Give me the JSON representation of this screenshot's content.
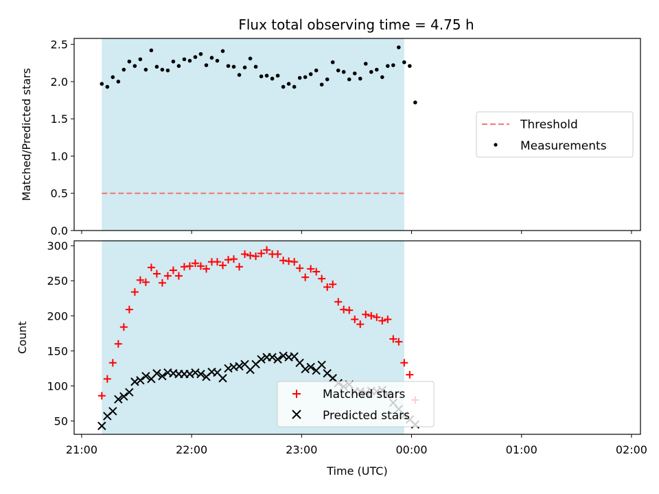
{
  "title": "Flux total observing time = 4.75 h",
  "colors": {
    "shade": "#add8e6",
    "threshold": "#f08080",
    "measurement": "#000000",
    "matched": "#ff0000",
    "predicted": "#000000"
  },
  "chart_data": [
    {
      "type": "scatter",
      "ylabel": "Matched/Predicted stars",
      "xlim": [
        "21:00",
        "02:00"
      ],
      "ylim": [
        0,
        2.5
      ],
      "yticks": [
        "0.0",
        "0.5",
        "1.0",
        "1.5",
        "2.0",
        "2.5"
      ],
      "shaded_x_range": [
        "21:11",
        "23:56"
      ],
      "legend_position": "center-right",
      "threshold": {
        "name": "Threshold",
        "value": 0.5,
        "style": "dashed"
      },
      "series": [
        {
          "name": "Measurements",
          "points": [
            [
              "21:11",
              1.97
            ],
            [
              "21:14",
              1.93
            ],
            [
              "21:17",
              2.06
            ],
            [
              "21:20",
              2.0
            ],
            [
              "21:23",
              2.16
            ],
            [
              "21:26",
              2.27
            ],
            [
              "21:29",
              2.21
            ],
            [
              "21:32",
              2.3
            ],
            [
              "21:35",
              2.16
            ],
            [
              "21:38",
              2.42
            ],
            [
              "21:41",
              2.2
            ],
            [
              "21:44",
              2.16
            ],
            [
              "21:47",
              2.15
            ],
            [
              "21:50",
              2.27
            ],
            [
              "21:53",
              2.21
            ],
            [
              "21:56",
              2.3
            ],
            [
              "21:59",
              2.28
            ],
            [
              "22:02",
              2.33
            ],
            [
              "22:05",
              2.37
            ],
            [
              "22:08",
              2.22
            ],
            [
              "22:11",
              2.32
            ],
            [
              "22:14",
              2.28
            ],
            [
              "22:17",
              2.41
            ],
            [
              "22:20",
              2.21
            ],
            [
              "22:23",
              2.2
            ],
            [
              "22:26",
              2.09
            ],
            [
              "22:29",
              2.19
            ],
            [
              "22:32",
              2.31
            ],
            [
              "22:35",
              2.2
            ],
            [
              "22:38",
              2.07
            ],
            [
              "22:41",
              2.08
            ],
            [
              "22:44",
              2.04
            ],
            [
              "22:47",
              2.08
            ],
            [
              "22:50",
              1.93
            ],
            [
              "22:53",
              1.97
            ],
            [
              "22:56",
              1.93
            ],
            [
              "22:59",
              2.05
            ],
            [
              "23:02",
              2.06
            ],
            [
              "23:05",
              2.1
            ],
            [
              "23:08",
              2.15
            ],
            [
              "23:11",
              1.96
            ],
            [
              "23:14",
              2.03
            ],
            [
              "23:17",
              2.26
            ],
            [
              "23:20",
              2.15
            ],
            [
              "23:23",
              2.13
            ],
            [
              "23:26",
              2.03
            ],
            [
              "23:29",
              2.11
            ],
            [
              "23:32",
              2.04
            ],
            [
              "23:35",
              2.24
            ],
            [
              "23:38",
              2.13
            ],
            [
              "23:41",
              2.16
            ],
            [
              "23:44",
              2.06
            ],
            [
              "23:47",
              2.21
            ],
            [
              "23:50",
              2.22
            ],
            [
              "23:53",
              2.46
            ],
            [
              "23:56",
              2.26
            ],
            [
              "23:59",
              2.21
            ],
            [
              "00:02",
              1.72
            ]
          ]
        }
      ]
    },
    {
      "type": "scatter",
      "xlabel": "Time (UTC)",
      "ylabel": "Count",
      "xticks": [
        "21:00",
        "22:00",
        "23:00",
        "00:00",
        "01:00",
        "02:00"
      ],
      "xlim": [
        "21:00",
        "02:00"
      ],
      "ylim": [
        30,
        305
      ],
      "yticks": [
        "50",
        "100",
        "150",
        "200",
        "250",
        "300"
      ],
      "shaded_x_range": [
        "21:11",
        "23:56"
      ],
      "legend_position": "lower-center",
      "series": [
        {
          "name": "Matched stars",
          "marker": "plus",
          "points": [
            [
              "21:11",
              86
            ],
            [
              "21:14",
              110
            ],
            [
              "21:17",
              133
            ],
            [
              "21:20",
              160
            ],
            [
              "21:23",
              184
            ],
            [
              "21:26",
              209
            ],
            [
              "21:29",
              234
            ],
            [
              "21:32",
              251
            ],
            [
              "21:35",
              248
            ],
            [
              "21:38",
              269
            ],
            [
              "21:41",
              260
            ],
            [
              "21:44",
              247
            ],
            [
              "21:47",
              257
            ],
            [
              "21:50",
              265
            ],
            [
              "21:53",
              257
            ],
            [
              "21:56",
              270
            ],
            [
              "21:59",
              271
            ],
            [
              "22:02",
              275
            ],
            [
              "22:05",
              271
            ],
            [
              "22:08",
              267
            ],
            [
              "22:11",
              277
            ],
            [
              "22:14",
              277
            ],
            [
              "22:17",
              272
            ],
            [
              "22:20",
              280
            ],
            [
              "22:23",
              281
            ],
            [
              "22:26",
              270
            ],
            [
              "22:29",
              288
            ],
            [
              "22:32",
              286
            ],
            [
              "22:35",
              285
            ],
            [
              "22:38",
              289
            ],
            [
              "22:41",
              294
            ],
            [
              "22:44",
              288
            ],
            [
              "22:47",
              288
            ],
            [
              "22:50",
              279
            ],
            [
              "22:53",
              278
            ],
            [
              "22:56",
              277
            ],
            [
              "22:59",
              268
            ],
            [
              "23:02",
              255
            ],
            [
              "23:05",
              267
            ],
            [
              "23:08",
              263
            ],
            [
              "23:11",
              253
            ],
            [
              "23:14",
              241
            ],
            [
              "23:17",
              245
            ],
            [
              "23:20",
              220
            ],
            [
              "23:23",
              209
            ],
            [
              "23:26",
              208
            ],
            [
              "23:29",
              195
            ],
            [
              "23:32",
              188
            ],
            [
              "23:35",
              202
            ],
            [
              "23:38",
              200
            ],
            [
              "23:41",
              198
            ],
            [
              "23:44",
              193
            ],
            [
              "23:47",
              195
            ],
            [
              "23:50",
              167
            ],
            [
              "23:53",
              163
            ],
            [
              "23:56",
              133
            ],
            [
              "23:59",
              116
            ],
            [
              "00:02",
              80
            ]
          ]
        },
        {
          "name": "Predicted stars",
          "marker": "x",
          "points": [
            [
              "21:11",
              43
            ],
            [
              "21:14",
              57
            ],
            [
              "21:17",
              64
            ],
            [
              "21:20",
              81
            ],
            [
              "21:23",
              85
            ],
            [
              "21:26",
              91
            ],
            [
              "21:29",
              106
            ],
            [
              "21:32",
              108
            ],
            [
              "21:35",
              114
            ],
            [
              "21:38",
              110
            ],
            [
              "21:41",
              118
            ],
            [
              "21:44",
              114
            ],
            [
              "21:47",
              119
            ],
            [
              "21:50",
              118
            ],
            [
              "21:53",
              117
            ],
            [
              "21:56",
              117
            ],
            [
              "21:59",
              117
            ],
            [
              "22:02",
              119
            ],
            [
              "22:05",
              117
            ],
            [
              "22:08",
              113
            ],
            [
              "22:11",
              120
            ],
            [
              "22:14",
              119
            ],
            [
              "22:17",
              111
            ],
            [
              "22:20",
              125
            ],
            [
              "22:23",
              127
            ],
            [
              "22:26",
              128
            ],
            [
              "22:29",
              131
            ],
            [
              "22:32",
              123
            ],
            [
              "22:35",
              131
            ],
            [
              "22:38",
              138
            ],
            [
              "22:41",
              141
            ],
            [
              "22:44",
              141
            ],
            [
              "22:47",
              138
            ],
            [
              "22:50",
              143
            ],
            [
              "22:53",
              141
            ],
            [
              "22:56",
              142
            ],
            [
              "22:59",
              133
            ],
            [
              "23:02",
              124
            ],
            [
              "23:05",
              127
            ],
            [
              "23:08",
              122
            ],
            [
              "23:11",
              130
            ],
            [
              "23:14",
              118
            ],
            [
              "23:17",
              111
            ],
            [
              "23:20",
              104
            ],
            [
              "23:23",
              99
            ],
            [
              "23:26",
              102
            ],
            [
              "23:29",
              92
            ],
            [
              "23:32",
              92
            ],
            [
              "23:35",
              90
            ],
            [
              "23:38",
              93
            ],
            [
              "23:41",
              92
            ],
            [
              "23:44",
              94
            ],
            [
              "23:47",
              88
            ],
            [
              "23:50",
              76
            ],
            [
              "23:53",
              67
            ],
            [
              "23:56",
              58
            ],
            [
              "23:59",
              52
            ],
            [
              "00:02",
              45
            ]
          ]
        }
      ]
    }
  ]
}
